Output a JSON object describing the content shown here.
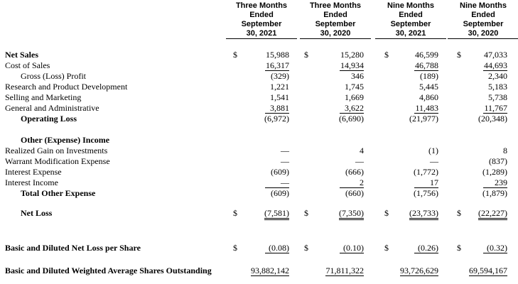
{
  "table": {
    "columns": [
      [
        "Three Months",
        "Ended",
        "September",
        "30, 2021"
      ],
      [
        "Three Months",
        "Ended",
        "September",
        "30, 2020"
      ],
      [
        "Nine Months",
        "Ended",
        "September",
        "30, 2021"
      ],
      [
        "Nine Months",
        "Ended",
        "September",
        "30, 2020"
      ]
    ],
    "rows": [
      {
        "label": "Net Sales",
        "cells": [
          {
            "symbol": "$",
            "value": "15,988"
          },
          {
            "symbol": "$",
            "value": "15,280"
          },
          {
            "symbol": "$",
            "value": "46,599"
          },
          {
            "symbol": "$",
            "value": "47,033"
          }
        ]
      },
      {
        "label": "Cost of Sales",
        "cells": [
          {
            "value": "16,317"
          },
          {
            "value": "14,934"
          },
          {
            "value": "46,788"
          },
          {
            "value": "44,693"
          }
        ]
      },
      {
        "label": "Gross (Loss) Profit",
        "cells": [
          {
            "value": "(329)"
          },
          {
            "value": "346"
          },
          {
            "value": "(189)"
          },
          {
            "value": "2,340"
          }
        ]
      },
      {
        "label": "Research and Product Development",
        "cells": [
          {
            "value": "1,221"
          },
          {
            "value": "1,745"
          },
          {
            "value": "5,445"
          },
          {
            "value": "5,183"
          }
        ]
      },
      {
        "label": "Selling and Marketing",
        "cells": [
          {
            "value": "1,541"
          },
          {
            "value": "1,669"
          },
          {
            "value": "4,860"
          },
          {
            "value": "5,738"
          }
        ]
      },
      {
        "label": "General and Administrative",
        "cells": [
          {
            "value": "3,881"
          },
          {
            "value": "3,622"
          },
          {
            "value": "11,483"
          },
          {
            "value": "11,767"
          }
        ]
      },
      {
        "label": "Operating Loss",
        "cells": [
          {
            "value": "(6,972)"
          },
          {
            "value": "(6,690)"
          },
          {
            "value": "(21,977)"
          },
          {
            "value": "(20,348)"
          }
        ]
      },
      {
        "label": "Other (Expense) Income"
      },
      {
        "label": "Realized Gain on Investments",
        "cells": [
          {
            "value": "—"
          },
          {
            "value": "4"
          },
          {
            "value": "(1)"
          },
          {
            "value": "8"
          }
        ]
      },
      {
        "label": "Warrant Modification Expense",
        "cells": [
          {
            "value": "—"
          },
          {
            "value": "—"
          },
          {
            "value": "—"
          },
          {
            "value": "(837)"
          }
        ]
      },
      {
        "label": "Interest Expense",
        "cells": [
          {
            "value": "(609)"
          },
          {
            "value": "(666)"
          },
          {
            "value": "(1,772)"
          },
          {
            "value": "(1,289)"
          }
        ]
      },
      {
        "label": "Interest Income",
        "cells": [
          {
            "value": "—"
          },
          {
            "value": "2"
          },
          {
            "value": "17"
          },
          {
            "value": "239"
          }
        ]
      },
      {
        "label": "Total Other Expense",
        "cells": [
          {
            "value": "(609)"
          },
          {
            "value": "(660)"
          },
          {
            "value": "(1,756)"
          },
          {
            "value": "(1,879)"
          }
        ]
      },
      {
        "label": "Net Loss",
        "cells": [
          {
            "symbol": "$",
            "value": "(7,581)"
          },
          {
            "symbol": "$",
            "value": "(7,350)"
          },
          {
            "symbol": "$",
            "value": "(23,733)"
          },
          {
            "symbol": "$",
            "value": "(22,227)"
          }
        ]
      },
      {
        "label": "Basic and Diluted Net Loss per Share",
        "cells": [
          {
            "symbol": "$",
            "value": "(0.08)"
          },
          {
            "symbol": "$",
            "value": "(0.10)"
          },
          {
            "symbol": "$",
            "value": "(0.26)"
          },
          {
            "symbol": "$",
            "value": "(0.32)"
          }
        ]
      },
      {
        "label": "Basic and Diluted Weighted Average Shares Outstanding",
        "cells": [
          {
            "value": "93,882,142"
          },
          {
            "value": "71,811,322"
          },
          {
            "value": "93,726,629"
          },
          {
            "value": "69,594,167"
          }
        ]
      }
    ]
  }
}
